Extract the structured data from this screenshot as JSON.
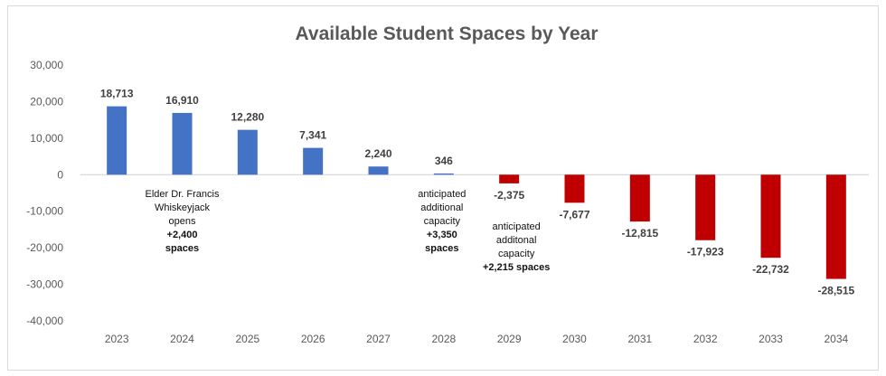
{
  "chart_data": {
    "type": "bar",
    "title": "Available Student Spaces by Year",
    "xlabel": "",
    "ylabel": "",
    "categories": [
      "2023",
      "2024",
      "2025",
      "2026",
      "2027",
      "2028",
      "2029",
      "2030",
      "2031",
      "2032",
      "2033",
      "2034"
    ],
    "values": [
      18713,
      16910,
      12280,
      7341,
      2240,
      346,
      -2375,
      -7677,
      -12815,
      -17923,
      -22732,
      -28515
    ],
    "value_labels": [
      "18,713",
      "16,910",
      "12,280",
      "7,341",
      "2,240",
      "346",
      "-2,375",
      "-7,677",
      "-12,815",
      "-17,923",
      "-22,732",
      "-28,515"
    ],
    "ylim": [
      -40000,
      30000
    ],
    "yticks": [
      30000,
      20000,
      10000,
      0,
      -10000,
      -20000,
      -30000,
      -40000
    ],
    "ytick_labels": [
      "30,000",
      "20,000",
      "10,000",
      "0",
      "-10,000",
      "-20,000",
      "-30,000",
      "-40,000"
    ],
    "colors": {
      "positive": "#4472C4",
      "negative": "#C00000"
    },
    "grid": false,
    "legend": "none",
    "annotations": [
      {
        "category": "2024",
        "lines": [
          "Elder Dr. Francis",
          "Whiskeyjack",
          "opens"
        ],
        "bold_lines": [
          "+2,400",
          "spaces"
        ]
      },
      {
        "category": "2028",
        "lines": [
          "anticipated",
          "additional",
          "capacity"
        ],
        "bold_lines": [
          "+3,350",
          "spaces"
        ]
      },
      {
        "category": "2029",
        "lines": [
          "anticipated",
          "additonal",
          "capacity"
        ],
        "bold_lines": [
          "+2,215 spaces"
        ]
      }
    ]
  }
}
